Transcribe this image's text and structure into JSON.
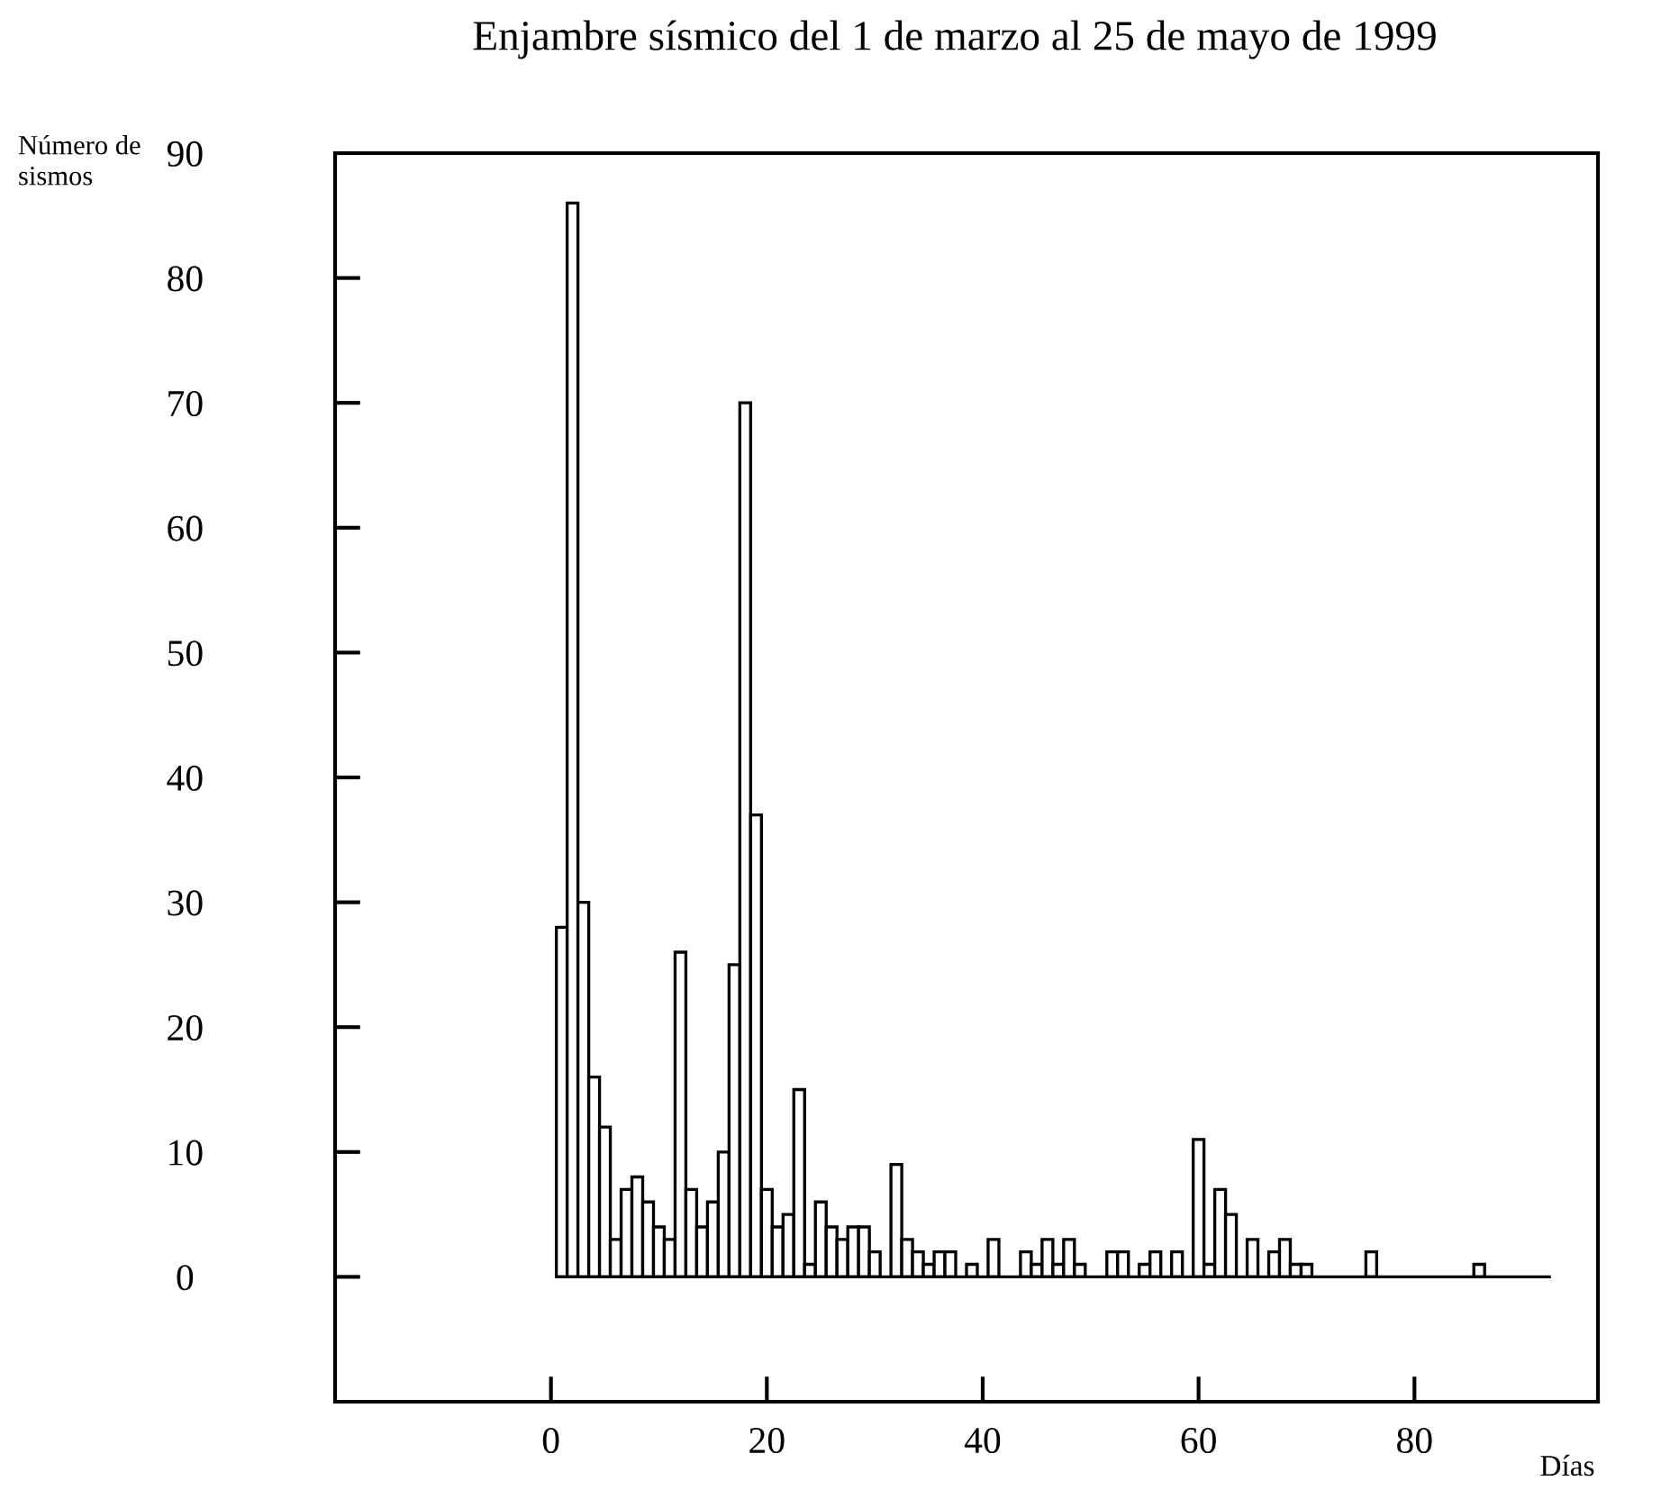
{
  "chart_data": {
    "type": "histogram",
    "title": "Enjambre sísmico del 1 de marzo al 25 de mayo de 1999",
    "xlabel": "Días",
    "ylabel": "Número de\nsismos",
    "bins": [
      0.5,
      1.5,
      2.5,
      3.5,
      4.5,
      5.5,
      6.5,
      7.5,
      8.5,
      9.5,
      10.5,
      11.5,
      12.5,
      13.5,
      14.5,
      15.5,
      16.5,
      17.5,
      18.5,
      19.5,
      20.5,
      21.5,
      22.5,
      23.5,
      24.5,
      25.5,
      26.5,
      27.5,
      28.5,
      29.5,
      30.5,
      31.5,
      32.5,
      33.5,
      34.5,
      35.5,
      36.5,
      37.5,
      38.5,
      39.5,
      40.5,
      41.5,
      42.5,
      43.5,
      44.5,
      45.5,
      46.5,
      47.5,
      48.5,
      49.5,
      50.5,
      51.5,
      52.5,
      53.5,
      54.5,
      55.5,
      56.5,
      57.5,
      58.5,
      59.5,
      60.5,
      61.5,
      62.5,
      63.5,
      64.5,
      65.5,
      66.5,
      67.5,
      68.5,
      69.5,
      70.5,
      71.5,
      72.5,
      73.5,
      74.5,
      75.5,
      76.5,
      77.5,
      78.5,
      79.5,
      80.5,
      81.5,
      82.5,
      83.5,
      84.5,
      85.5,
      86.5,
      87.5,
      88.5,
      89.5,
      90.5,
      91.5,
      92.5
    ],
    "values": [
      28,
      86,
      30,
      16,
      12,
      3,
      7,
      8,
      6,
      4,
      3,
      26,
      7,
      4,
      6,
      10,
      25,
      70,
      37,
      7,
      4,
      5,
      15,
      1,
      6,
      4,
      3,
      4,
      4,
      2,
      0,
      9,
      3,
      2,
      1,
      2,
      2,
      0,
      1,
      0,
      3,
      0,
      0,
      2,
      1,
      3,
      1,
      3,
      1,
      0,
      0,
      2,
      2,
      0,
      1,
      2,
      0,
      2,
      0,
      11,
      1,
      7,
      5,
      0,
      3,
      0,
      2,
      3,
      1,
      1,
      0,
      0,
      0,
      0,
      0,
      2,
      0,
      0,
      0,
      0,
      0,
      0,
      0,
      0,
      0,
      1,
      0,
      0,
      0,
      0,
      0,
      0
    ],
    "color": "#ffffff",
    "xlim": [
      -20,
      97
    ],
    "ylim": [
      -10,
      90
    ],
    "xticks": [
      0,
      20,
      40,
      60,
      80
    ],
    "yticks": [
      0,
      10,
      20,
      30,
      40,
      50,
      60,
      70,
      80,
      90
    ]
  }
}
